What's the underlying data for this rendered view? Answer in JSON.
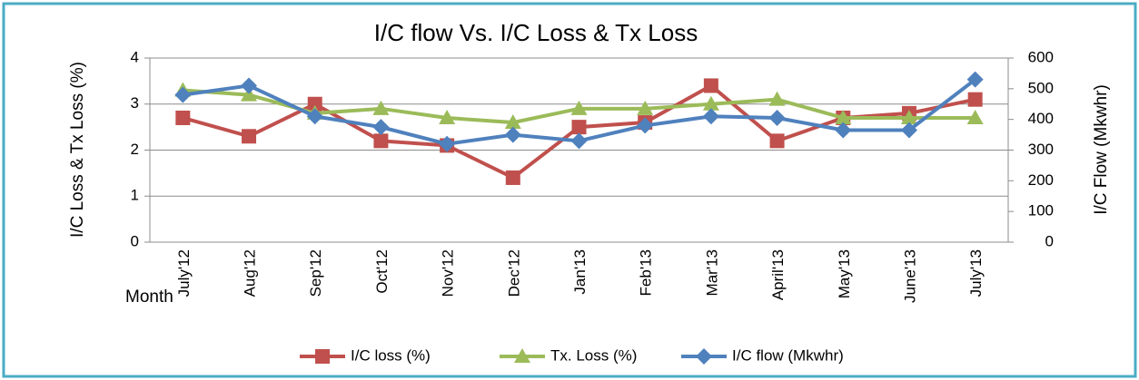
{
  "chart_data": {
    "type": "line",
    "title": "I/C flow Vs. I/C Loss & Tx Loss",
    "xlabel": "Month",
    "ylabel": "I/C Loss & Tx Loss (%)",
    "y2label": "I/C Flow  (Mkwhr)",
    "categories": [
      "July'12",
      "Aug'12",
      "Sep'12",
      "Oct'12",
      "Nov'12",
      "Dec'12",
      "Jan'13",
      "Feb'13",
      "Mar'13",
      "April'13",
      "May'13",
      "June'13",
      "July'13"
    ],
    "series": [
      {
        "name": "I/C loss (%)",
        "color": "#c0504d",
        "marker": "square",
        "values": [
          2.7,
          2.3,
          3.0,
          2.2,
          2.1,
          1.4,
          2.5,
          2.6,
          3.4,
          2.2,
          2.7,
          2.8,
          3.1
        ]
      },
      {
        "name": "Tx. Loss (%)",
        "color": "#9bbb59",
        "marker": "triangle",
        "values": [
          3.3,
          3.2,
          2.8,
          2.9,
          2.7,
          2.6,
          2.9,
          2.9,
          3.0,
          3.1,
          2.7,
          2.7,
          2.7
        ]
      },
      {
        "name": "I/C flow (Mkwhr)",
        "color": "#4f81bd",
        "marker": "diamond",
        "axis": "y2",
        "values": [
          480,
          510,
          410,
          375,
          320,
          350,
          330,
          380,
          410,
          405,
          365,
          365,
          530
        ]
      }
    ],
    "ylim": [
      0,
      4
    ],
    "yticks": [
      0,
      1,
      2,
      3,
      4
    ],
    "y2lim": [
      0,
      600
    ],
    "y2ticks": [
      0,
      100,
      200,
      300,
      400,
      500,
      600
    ],
    "grid": true,
    "legend": "bottom"
  }
}
